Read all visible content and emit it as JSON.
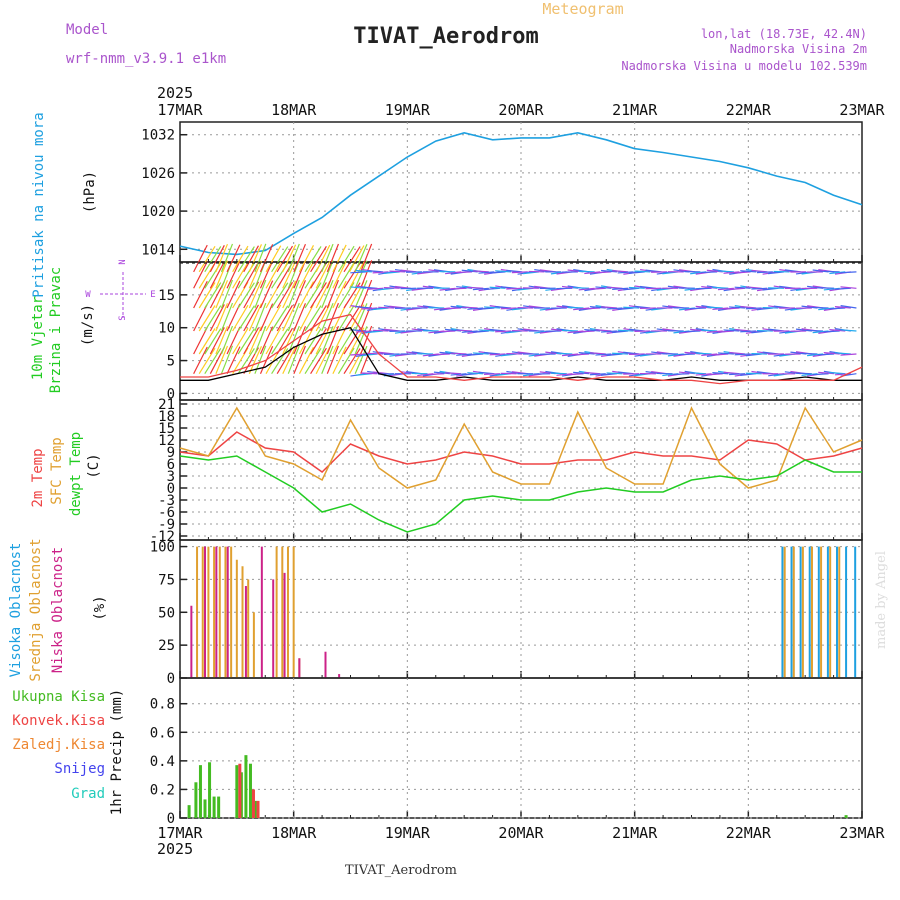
{
  "header": {
    "model_label": "Model",
    "model_name": "wrf-nmm_v3.9.1 e1km",
    "title": "TIVAT_Aerodrom",
    "subtitle": "Meteogram",
    "coords": "lon,lat (18.73E, 42.4N)",
    "elevation": "Nadmorska Visina 2m",
    "model_elevation": "Nadmorska Visina u modelu 102.539m",
    "footer_station": "TIVAT_Aerodrom",
    "credit": "made by Angel"
  },
  "time_axis": {
    "year": "2025",
    "labels": [
      "17MAR",
      "18MAR",
      "19MAR",
      "20MAR",
      "21MAR",
      "22MAR",
      "23MAR"
    ]
  },
  "colors": {
    "pressure": "#1ea0e0",
    "temp2m": "#ee4444",
    "sfc_temp": "#e0a030",
    "dewpoint": "#22cc22",
    "high_cloud": "#1ea0e0",
    "mid_cloud": "#e0a030",
    "low_cloud": "#cc2288",
    "total_precip": "#44bb22",
    "conv_precip": "#ee4444",
    "frozen": "#ee8833",
    "snow": "#4444ee",
    "hail": "#22ccbb",
    "wind_label": "#22cc22",
    "wind_dir": "#aa44dd"
  },
  "chart_data": [
    {
      "type": "line",
      "panel": "pressure",
      "ylabel": [
        "Pritisak na nivou mora",
        "(hPa)"
      ],
      "ylim": [
        1012,
        1034
      ],
      "yticks": [
        1014,
        1020,
        1026,
        1032
      ],
      "x_days": [
        0,
        0.25,
        0.5,
        0.75,
        1.0,
        1.25,
        1.5,
        1.75,
        2.0,
        2.25,
        2.5,
        2.75,
        3.0,
        3.25,
        3.5,
        3.75,
        4.0,
        4.25,
        4.5,
        4.75,
        5.0,
        5.25,
        5.5,
        5.75,
        6.0
      ],
      "values": [
        1014.5,
        1013.5,
        1013.2,
        1013.8,
        1016.5,
        1019,
        1022.5,
        1025.5,
        1028.5,
        1031,
        1032.3,
        1031.2,
        1031.5,
        1031.5,
        1032.3,
        1031.2,
        1029.8,
        1029.2,
        1028.5,
        1027.8,
        1026.8,
        1025.5,
        1024.5,
        1022.5,
        1021
      ]
    },
    {
      "type": "line",
      "panel": "wind",
      "ylabel": [
        "10m Vjetar",
        "Brzina i Pravac",
        "(m/s)"
      ],
      "compass": [
        "N",
        "S",
        "W",
        "E"
      ],
      "ylim": [
        -1,
        20
      ],
      "yticks": [
        0,
        5,
        10,
        15
      ],
      "x_days": [
        0,
        0.25,
        0.5,
        0.75,
        1.0,
        1.25,
        1.5,
        1.75,
        2.0,
        2.25,
        2.5,
        2.75,
        3.0,
        3.25,
        3.5,
        3.75,
        4.0,
        4.25,
        4.5,
        4.75,
        5.0,
        5.25,
        5.5,
        5.75,
        6.0
      ],
      "series": [
        {
          "name": "speed",
          "values": [
            2,
            2,
            3,
            4,
            7,
            9,
            10,
            3,
            2,
            2,
            2.5,
            2,
            2,
            2,
            2.5,
            2,
            2,
            2,
            2.5,
            2,
            2,
            2,
            2.5,
            2,
            2
          ]
        },
        {
          "name": "gust",
          "values": [
            2.5,
            2.5,
            3.5,
            5,
            8,
            11,
            12,
            6,
            2.5,
            2.5,
            2,
            2.5,
            2.5,
            2.5,
            2,
            2.5,
            2.5,
            2,
            2,
            1.5,
            2,
            2,
            2,
            2,
            4
          ]
        }
      ]
    },
    {
      "type": "line",
      "panel": "temperature",
      "ylabel": [
        "2m Temp",
        "SFC Temp",
        "dewpt Temp",
        "(C)"
      ],
      "ylim": [
        -13,
        22
      ],
      "yticks": [
        -12,
        -9,
        -6,
        -3,
        0,
        3,
        6,
        9,
        12,
        15,
        18,
        21
      ],
      "x_days": [
        0,
        0.25,
        0.5,
        0.75,
        1.0,
        1.25,
        1.5,
        1.75,
        2.0,
        2.25,
        2.5,
        2.75,
        3.0,
        3.25,
        3.5,
        3.75,
        4.0,
        4.25,
        4.5,
        4.75,
        5.0,
        5.25,
        5.5,
        5.75,
        6.0
      ],
      "series": [
        {
          "name": "2m Temp",
          "values": [
            9,
            8,
            14,
            10,
            9,
            4,
            11,
            8,
            6,
            7,
            9,
            8,
            6,
            6,
            7,
            7,
            9,
            8,
            8,
            7,
            12,
            11,
            7,
            8,
            10
          ]
        },
        {
          "name": "SFC Temp",
          "values": [
            10,
            8,
            20,
            8,
            6,
            2,
            17,
            5,
            0,
            2,
            16,
            4,
            1,
            1,
            19,
            5,
            1,
            1,
            20,
            6,
            0,
            2,
            20,
            9,
            12
          ]
        },
        {
          "name": "dewpt Temp",
          "values": [
            8,
            7,
            8,
            4,
            0,
            -6,
            -4,
            -8,
            -11,
            -9,
            -3,
            -2,
            -3,
            -3,
            -1,
            0,
            -1,
            -1,
            2,
            3,
            2,
            3,
            7,
            4,
            4
          ]
        }
      ]
    },
    {
      "type": "bar",
      "panel": "cloud",
      "ylabel": [
        "Visoka Oblacnost",
        "Srednja Oblacnost",
        "Niska Oblacnost",
        "(%)"
      ],
      "ylim": [
        0,
        105
      ],
      "yticks": [
        0,
        25,
        50,
        75,
        100
      ],
      "series": [
        {
          "name": "Visoka Oblacnost",
          "x_days": [
            5.3,
            5.38,
            5.46,
            5.54,
            5.62,
            5.7,
            5.78,
            5.86,
            5.94
          ],
          "values": [
            100,
            100,
            100,
            100,
            100,
            100,
            100,
            100,
            100
          ]
        },
        {
          "name": "Srednja Oblacnost",
          "x_days": [
            0.15,
            0.2,
            0.25,
            0.3,
            0.35,
            0.4,
            0.45,
            0.5,
            0.55,
            0.6,
            0.65,
            0.85,
            0.9,
            0.95,
            1.0,
            1.05,
            5.32,
            5.4,
            5.48,
            5.56,
            5.64,
            5.72,
            5.8
          ],
          "values": [
            100,
            100,
            100,
            100,
            100,
            100,
            100,
            90,
            85,
            75,
            50,
            100,
            100,
            100,
            100,
            15,
            100,
            100,
            100,
            100,
            100,
            100,
            100
          ]
        },
        {
          "name": "Niska Oblacnost",
          "x_days": [
            0.1,
            0.22,
            0.32,
            0.42,
            0.58,
            0.72,
            0.82,
            0.92,
            1.05,
            1.28,
            1.4
          ],
          "values": [
            55,
            100,
            100,
            100,
            70,
            100,
            75,
            80,
            15,
            20,
            3
          ]
        }
      ]
    },
    {
      "type": "bar",
      "panel": "precip",
      "ylabel": [
        "1hr Precip (mm)"
      ],
      "legend": [
        "Ukupna Kisa",
        "Konvek.Kisa",
        "Zaledj.Kisa",
        "Snijeg",
        "Grad"
      ],
      "ylim": [
        0,
        0.98
      ],
      "yticks": [
        0,
        0.2,
        0.4,
        0.6,
        0.8
      ],
      "series": [
        {
          "name": "Ukupna Kisa",
          "x_days": [
            0.08,
            0.14,
            0.18,
            0.22,
            0.26,
            0.3,
            0.34,
            0.5,
            0.54,
            0.58,
            0.62,
            0.66,
            5.86
          ],
          "values": [
            0.09,
            0.25,
            0.37,
            0.13,
            0.39,
            0.15,
            0.15,
            0.37,
            0.32,
            0.44,
            0.38,
            0.12,
            0.02
          ]
        },
        {
          "name": "Konvek.Kisa",
          "x_days": [
            0.5,
            0.62,
            0.66
          ],
          "values": [
            0.38,
            0.2,
            0.12
          ]
        }
      ]
    }
  ]
}
